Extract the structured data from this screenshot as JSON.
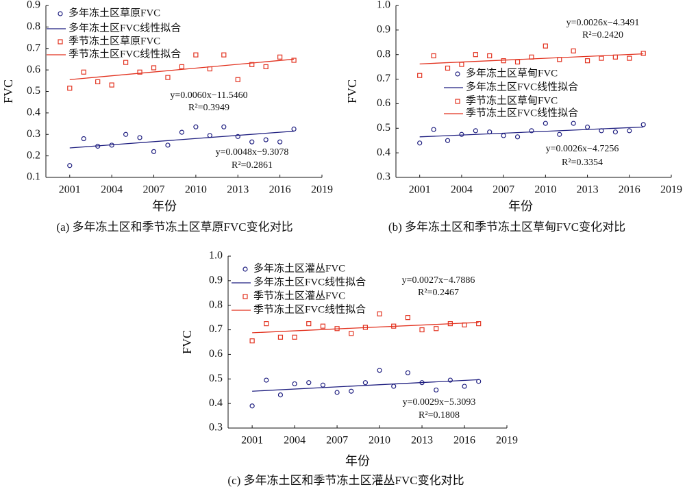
{
  "chart_data": [
    {
      "type": "scatter",
      "title": "(a) 多年冻土区和季节冻土区草原FVC变化对比",
      "xlabel": "年份",
      "ylabel": "FVC",
      "x": [
        2001,
        2002,
        2003,
        2004,
        2005,
        2006,
        2007,
        2008,
        2009,
        2010,
        2011,
        2012,
        2013,
        2014,
        2015,
        2016,
        2017
      ],
      "xlim": [
        1999.3,
        2019
      ],
      "xticks": [
        2001,
        2004,
        2007,
        2010,
        2013,
        2016,
        2019
      ],
      "ylim": [
        0.1,
        0.9
      ],
      "yticks": [
        0.1,
        0.2,
        0.3,
        0.4,
        0.5,
        0.6,
        0.7,
        0.8,
        0.9
      ],
      "legend": "upper left",
      "series": [
        {
          "name": "多年冻土区草原FVC",
          "color": "#1f1f80",
          "kind": "scatter",
          "marker": "circle",
          "values": [
            0.155,
            0.28,
            0.245,
            0.25,
            0.3,
            0.285,
            0.22,
            0.25,
            0.31,
            0.335,
            0.295,
            0.335,
            0.29,
            0.265,
            0.275,
            0.265,
            0.325
          ]
        },
        {
          "name": "多年冻土区FVC线性拟合",
          "color": "#1f1f80",
          "kind": "line",
          "x": [
            2001,
            2017
          ],
          "values": [
            0.237,
            0.315
          ]
        },
        {
          "name": "季节冻土区草原FVC",
          "color": "#e2321f",
          "kind": "scatter",
          "marker": "square",
          "values": [
            0.515,
            0.59,
            0.545,
            0.53,
            0.635,
            0.59,
            0.61,
            0.565,
            0.615,
            0.67,
            0.605,
            0.67,
            0.555,
            0.625,
            0.615,
            0.66,
            0.645
          ]
        },
        {
          "name": "季节冻土区FVC线性拟合",
          "color": "#e2321f",
          "kind": "line",
          "x": [
            2001,
            2017
          ],
          "values": [
            0.555,
            0.65
          ]
        }
      ],
      "annotations": [
        "y=0.0060x−11.5460",
        "R²=0.3949",
        "y=0.0048x−9.3078",
        "R²=0.2861"
      ]
    },
    {
      "type": "scatter",
      "title": "(b) 多年冻土区和季节冻土区草甸FVC变化对比",
      "xlabel": "年份",
      "ylabel": "FVC",
      "x": [
        2001,
        2002,
        2003,
        2004,
        2005,
        2006,
        2007,
        2008,
        2009,
        2010,
        2011,
        2012,
        2013,
        2014,
        2015,
        2016,
        2017
      ],
      "xlim": [
        1999.3,
        2019
      ],
      "xticks": [
        2001,
        2004,
        2007,
        2010,
        2013,
        2016,
        2019
      ],
      "ylim": [
        0.3,
        1.0
      ],
      "yticks": [
        0.3,
        0.4,
        0.5,
        0.6,
        0.7,
        0.8,
        0.9,
        {
          "value": 1.0,
          "label": "1.0"
        }
      ],
      "legend": "center left",
      "series": [
        {
          "name": "多年冻土区草甸FVC",
          "color": "#1f1f80",
          "kind": "scatter",
          "marker": "circle",
          "values": [
            0.44,
            0.495,
            0.45,
            0.475,
            0.49,
            0.485,
            0.47,
            0.465,
            0.49,
            0.52,
            0.475,
            0.52,
            0.505,
            0.49,
            0.485,
            0.49,
            0.515
          ]
        },
        {
          "name": "多年冻土区FVC线性拟合",
          "color": "#1f1f80",
          "kind": "line",
          "x": [
            2001,
            2017
          ],
          "values": [
            0.465,
            0.505
          ]
        },
        {
          "name": "季节冻土区草甸FVC",
          "color": "#e2321f",
          "kind": "scatter",
          "marker": "square",
          "values": [
            0.715,
            0.795,
            0.745,
            0.76,
            0.8,
            0.795,
            0.775,
            0.77,
            0.79,
            0.835,
            0.78,
            0.815,
            0.775,
            0.785,
            0.79,
            0.785,
            0.805
          ]
        },
        {
          "name": "季节冻土区FVC线性拟合",
          "color": "#e2321f",
          "kind": "line",
          "x": [
            2001,
            2017
          ],
          "values": [
            0.762,
            0.803
          ]
        }
      ],
      "annotations": [
        "y=0.0026x−4.3491",
        "R²=0.2420",
        "y=0.0026x−4.7256",
        "R²=0.3354"
      ]
    },
    {
      "type": "scatter",
      "title": "(c) 多年冻土区和季节冻土区灌丛FVC变化对比",
      "xlabel": "年份",
      "ylabel": "FVC",
      "x": [
        2001,
        2002,
        2003,
        2004,
        2005,
        2006,
        2007,
        2008,
        2009,
        2010,
        2011,
        2012,
        2013,
        2014,
        2015,
        2016,
        2017
      ],
      "xlim": [
        1999.3,
        2019
      ],
      "xticks": [
        2001,
        2004,
        2007,
        2010,
        2013,
        2016,
        2019
      ],
      "ylim": [
        0.3,
        1.0
      ],
      "yticks": [
        0.3,
        0.4,
        0.5,
        0.6,
        0.7,
        0.8,
        0.9,
        {
          "value": 1.0,
          "label": "1.0"
        }
      ],
      "legend": "upper left",
      "series": [
        {
          "name": "多年冻土区灌丛FVC",
          "color": "#1f1f80",
          "kind": "scatter",
          "marker": "circle",
          "values": [
            0.39,
            0.495,
            0.435,
            0.48,
            0.485,
            0.475,
            0.445,
            0.45,
            0.485,
            0.535,
            0.47,
            0.525,
            0.485,
            0.455,
            0.495,
            0.47,
            0.49
          ]
        },
        {
          "name": "多年冻土区FVC线性拟合",
          "color": "#1f1f80",
          "kind": "line",
          "x": [
            2001,
            2017
          ],
          "values": [
            0.45,
            0.497
          ]
        },
        {
          "name": "季节冻土区灌丛FVC",
          "color": "#e2321f",
          "kind": "scatter",
          "marker": "square",
          "values": [
            0.655,
            0.725,
            0.67,
            0.67,
            0.725,
            0.715,
            0.705,
            0.685,
            0.71,
            0.765,
            0.715,
            0.75,
            0.7,
            0.705,
            0.725,
            0.72,
            0.725
          ]
        },
        {
          "name": "季节冻土区FVC线性拟合",
          "color": "#e2321f",
          "kind": "line",
          "x": [
            2001,
            2017
          ],
          "values": [
            0.688,
            0.73
          ]
        }
      ],
      "annotations": [
        "y=0.0027x−4.7886",
        "R²=0.2467",
        "y=0.0029x−5.3093",
        "R²=0.1808"
      ]
    }
  ]
}
